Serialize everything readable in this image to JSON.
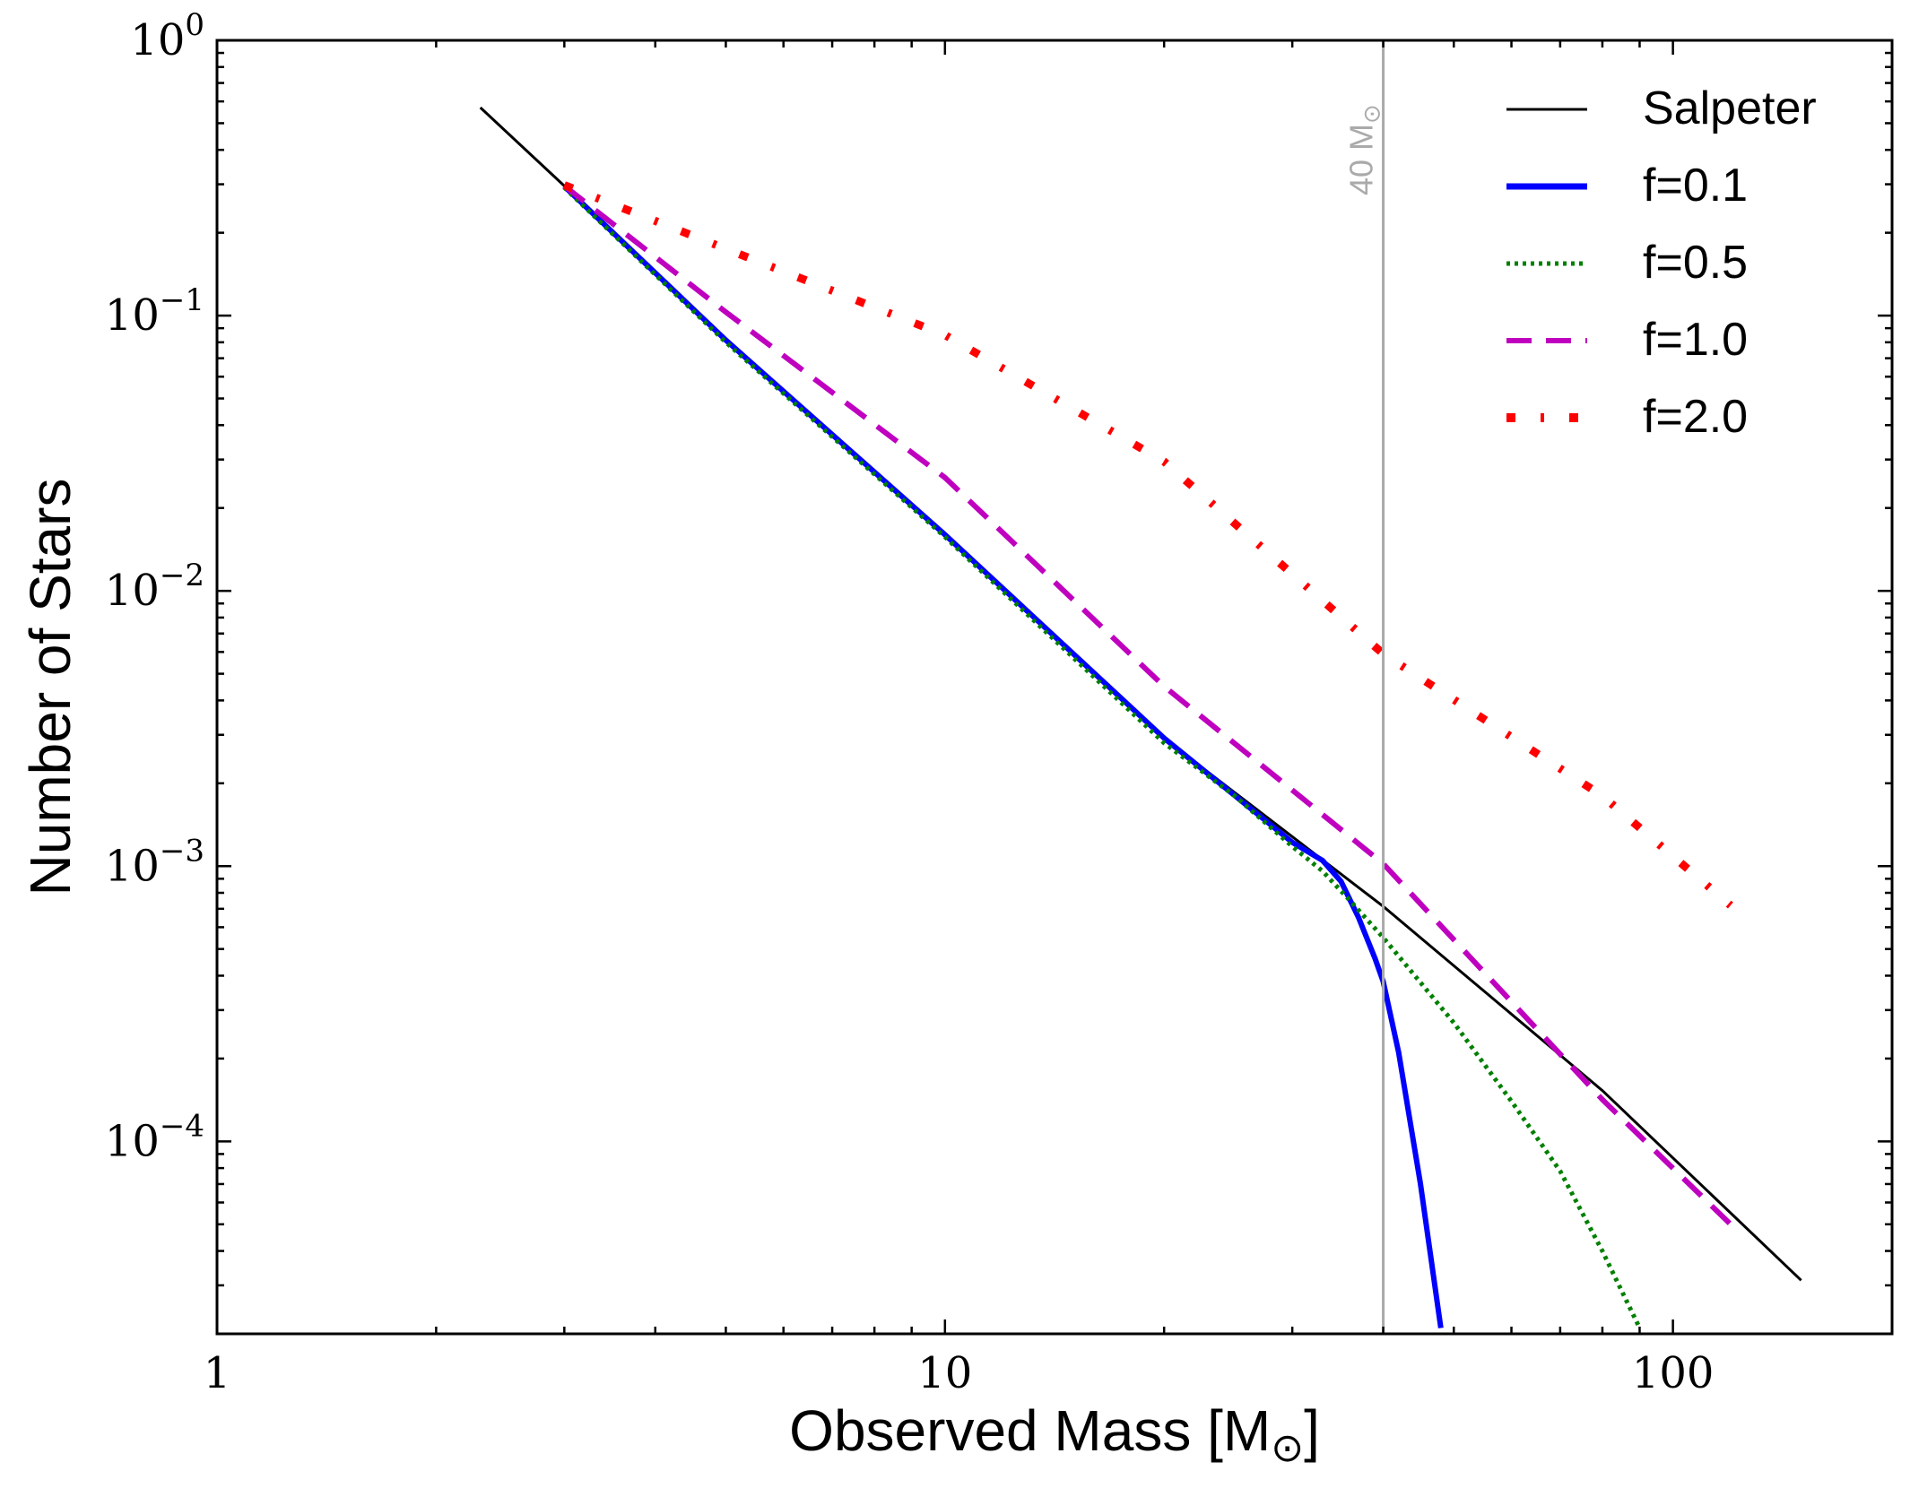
{
  "chart_data": {
    "type": "line",
    "xlabel": "Observed Mass [M",
    "xlabel_sub": "⊙",
    "xlabel_end": "]",
    "ylabel": "Number of Stars",
    "xscale": "log",
    "yscale": "log",
    "xlim": [
      1,
      200
    ],
    "ylim": [
      2e-05,
      1
    ],
    "x_ticks": [
      {
        "value": 1,
        "label": "1"
      },
      {
        "value": 10,
        "label": "10"
      },
      {
        "value": 100,
        "label": "100"
      }
    ],
    "y_ticks": [
      {
        "value": 1,
        "base": "10",
        "exp": "0"
      },
      {
        "value": 0.1,
        "base": "10",
        "exp": "−1"
      },
      {
        "value": 0.01,
        "base": "10",
        "exp": "−2"
      },
      {
        "value": 0.001,
        "base": "10",
        "exp": "−3"
      },
      {
        "value": 0.0001,
        "base": "10",
        "exp": "−4"
      }
    ],
    "vline": {
      "x": 40,
      "label": "40 M",
      "label_sub": "⊙",
      "color": "#aaaaaa"
    },
    "legend_position": "top-right",
    "series": [
      {
        "name": "Salpeter",
        "color": "#000000",
        "style": "solid",
        "x": [
          2.3,
          3,
          5,
          10,
          20,
          40,
          80,
          150
        ],
        "y": [
          0.57,
          0.296,
          0.0818,
          0.0161,
          0.00291,
          0.000714,
          0.000153,
          3.13e-05
        ]
      },
      {
        "name": "f=0.1",
        "color": "#0000ff",
        "style": "solid",
        "x": [
          3,
          5,
          10,
          20,
          30,
          33,
          35,
          37,
          39,
          40,
          42,
          45,
          48
        ],
        "y": [
          0.295,
          0.0815,
          0.016,
          0.00292,
          0.00122,
          0.00105,
          0.00088,
          0.00065,
          0.00046,
          0.00038,
          0.00021,
          7e-05,
          2.1e-05
        ]
      },
      {
        "name": "f=0.5",
        "color": "#008000",
        "style": "dotted",
        "x": [
          3,
          5,
          10,
          20,
          25,
          30,
          33,
          36,
          40,
          50,
          60,
          70,
          80,
          90
        ],
        "y": [
          0.292,
          0.08,
          0.0157,
          0.0028,
          0.0018,
          0.00118,
          0.00096,
          0.00075,
          0.00055,
          0.00027,
          0.00014,
          7.8e-05,
          4e-05,
          2.1e-05
        ]
      },
      {
        "name": "f=1.0",
        "color": "#bf00bf",
        "style": "dashed",
        "x": [
          3,
          5,
          10,
          20,
          40,
          80,
          120
        ],
        "y": [
          0.296,
          0.103,
          0.0258,
          0.0045,
          0.00102,
          0.000142,
          5e-05
        ]
      },
      {
        "name": "f=2.0",
        "color": "#ff0000",
        "style": "dashdot",
        "x": [
          3,
          5,
          10,
          20,
          40,
          80,
          120
        ],
        "y": [
          0.298,
          0.175,
          0.085,
          0.0295,
          0.0059,
          0.0018,
          0.00072
        ]
      }
    ]
  }
}
